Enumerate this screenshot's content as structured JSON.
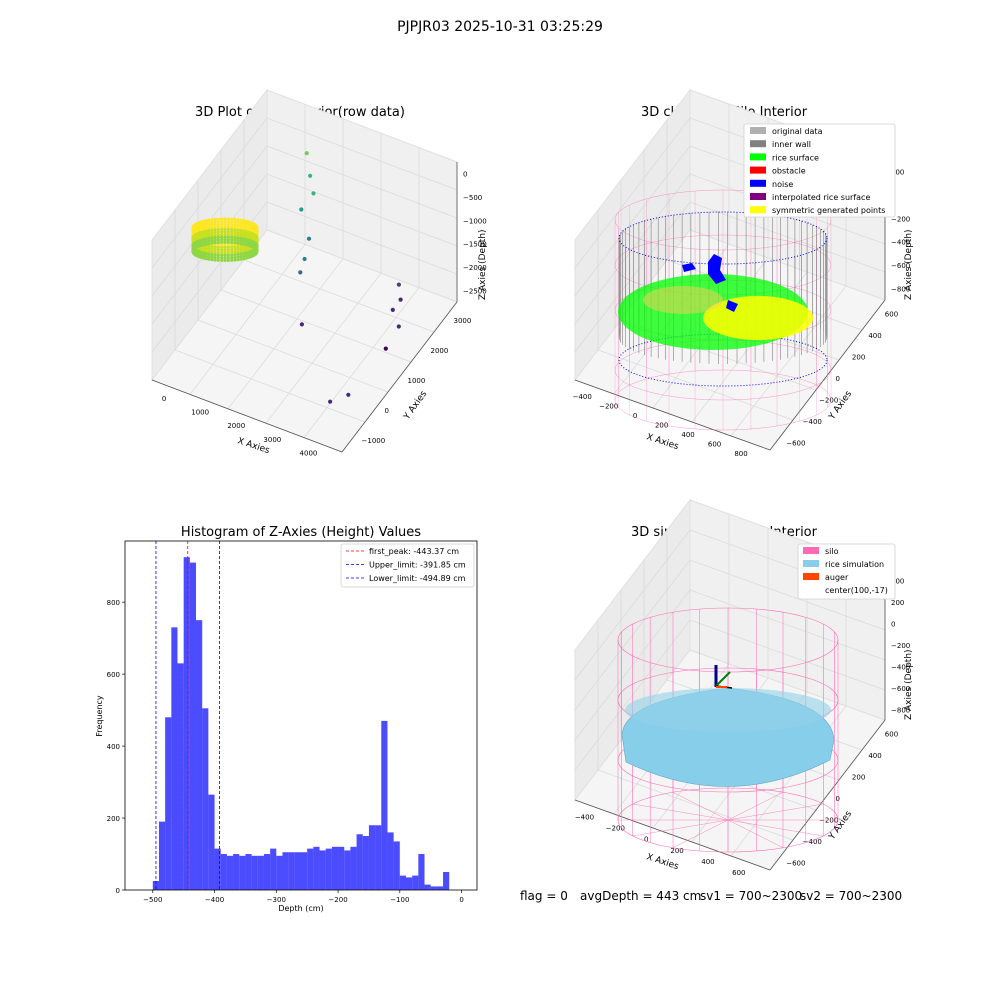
{
  "suptitle": "PJPJR03 2025-10-31 03:25:29",
  "footer": {
    "flag": "flag = 0",
    "avg": "avgDepth = 443 cm",
    "sv1": "sv1 = 700~2300",
    "sv2": "sv2 = 700~2300"
  },
  "colors": {
    "hist_bar": "#0000ff",
    "peak_line": "#ff0000",
    "limit_line": "#0000ff",
    "silo": "#ff69b4",
    "rice": "#87ceeb",
    "auger": "#ff4500",
    "inner_wall": "#808080",
    "rice_surface": "#00ff00",
    "noise": "#0000ff",
    "interp": "#800080",
    "symmetric": "#ffff00",
    "original": "#b0b0b0",
    "obstacle": "#ff0000"
  },
  "chart_data": [
    {
      "type": "scatter",
      "title": "3D Plot of Silo Interior(row data)",
      "xlabel": "X Axies",
      "ylabel": "Y Axies",
      "zlabel": "Z Axies (Depth)",
      "x_ticks": [
        "0",
        "1000",
        "2000",
        "3000",
        "4000"
      ],
      "y_ticks": [
        "−1000",
        "0",
        "1000",
        "2000",
        "3000"
      ],
      "z_ticks": [
        "0",
        "−500",
        "−1000",
        "−1500",
        "−2000",
        "−2500"
      ],
      "xlim": [
        -400,
        4000
      ],
      "ylim": [
        -1200,
        3200
      ],
      "zlim": [
        -2700,
        100
      ],
      "colormap": "viridis",
      "note_main_cluster": "dense ring of points near x 0 to 600, y 2800 to 3200, z -400",
      "outlier_points": [
        {
          "x": 700,
          "y": 2900,
          "z": -600
        },
        {
          "x": 900,
          "y": 2700,
          "z": -850
        },
        {
          "x": 1100,
          "y": 2500,
          "z": -1000
        },
        {
          "x": 1000,
          "y": 2200,
          "z": -1150
        },
        {
          "x": 1300,
          "y": 2000,
          "z": -1500
        },
        {
          "x": 1500,
          "y": 1500,
          "z": -1500
        },
        {
          "x": 1400,
          "y": 1500,
          "z": -1800
        },
        {
          "x": 1800,
          "y": 900,
          "z": -2300
        },
        {
          "x": 3200,
          "y": 2300,
          "z": -2000
        },
        {
          "x": 3300,
          "y": 2200,
          "z": -2200
        },
        {
          "x": 3300,
          "y": 1900,
          "z": -2200
        },
        {
          "x": 3500,
          "y": 1800,
          "z": -2400
        },
        {
          "x": 3500,
          "y": 1300,
          "z": -2500
        },
        {
          "x": 3300,
          "y": -500,
          "z": -2400
        },
        {
          "x": 3600,
          "y": -300,
          "z": -2300
        }
      ]
    },
    {
      "type": "scatter",
      "title": "3D classify of Silo Interior",
      "xlabel": "X Axies",
      "ylabel": "Y Axies",
      "zlabel": "Z Axies (Depth)",
      "x_ticks": [
        "−400",
        "−200",
        "0",
        "200",
        "400",
        "600",
        "800"
      ],
      "y_ticks": [
        "−600",
        "−400",
        "−200",
        "0",
        "200",
        "400",
        "600"
      ],
      "z_ticks": [
        "200",
        "0",
        "−200",
        "−400",
        "−600",
        "−800"
      ],
      "legend": [
        "original data",
        "inner wall",
        "rice surface",
        "obstacle",
        "noise",
        "interpolated rice surface",
        "symmetric generated points"
      ],
      "legend_position": "top-right"
    },
    {
      "type": "bar",
      "title": "Histogram of Z-Axies (Height) Values",
      "xlabel": "Depth (cm)",
      "ylabel": "Frequency",
      "x_ticks": [
        -500,
        -400,
        -300,
        -200,
        -100,
        0
      ],
      "y_ticks": [
        0,
        200,
        400,
        600,
        800
      ],
      "xlim": [
        -545,
        25
      ],
      "ylim": [
        0,
        970
      ],
      "bin_start": -500,
      "bin_width": 10,
      "values": [
        25,
        190,
        480,
        730,
        630,
        925,
        910,
        750,
        505,
        265,
        115,
        100,
        95,
        100,
        95,
        100,
        95,
        95,
        100,
        115,
        95,
        105,
        105,
        105,
        105,
        115,
        120,
        110,
        115,
        120,
        120,
        110,
        120,
        155,
        150,
        180,
        180,
        470,
        160,
        135,
        40,
        35,
        40,
        100,
        15,
        10,
        10,
        50
      ],
      "lines": [
        {
          "label": "first_peak: -443.37 cm",
          "value": -443.37,
          "style": "red-dashed"
        },
        {
          "label": "Upper_limit: -391.85 cm",
          "value": -391.85,
          "style": "blue-dashed"
        },
        {
          "label": "Lower_limit: -494.89 cm",
          "value": -494.89,
          "style": "blue-dashed"
        }
      ],
      "legend_position": "top-right"
    },
    {
      "type": "area",
      "title": "3D simulation of Silo Interior",
      "xlabel": "X Axies",
      "ylabel": "Y Axies",
      "zlabel": "Z Axies (Depth)",
      "x_ticks": [
        "−400",
        "−200",
        "0",
        "200",
        "400",
        "600"
      ],
      "y_ticks": [
        "−600",
        "−400",
        "−200",
        "0",
        "200",
        "400",
        "600"
      ],
      "z_ticks": [
        "400",
        "200",
        "0",
        "−200",
        "−400",
        "−600",
        "−800"
      ],
      "legend": [
        "silo",
        "rice simulation",
        "auger",
        "center(100,-17)"
      ],
      "legend_position": "top-right"
    }
  ]
}
